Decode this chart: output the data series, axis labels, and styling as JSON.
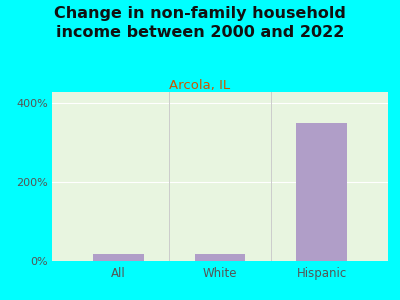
{
  "title": "Change in non-family household\nincome between 2000 and 2022",
  "subtitle": "Arcola, IL",
  "categories": [
    "All",
    "White",
    "Hispanic"
  ],
  "values": [
    18,
    18,
    350
  ],
  "bar_color": "#b09ec8",
  "background_color": "#00ffff",
  "plot_bg_top": "#e8f5e0",
  "plot_bg_bottom": "#f8fff8",
  "title_fontsize": 11.5,
  "subtitle_fontsize": 9.5,
  "subtitle_color": "#cc5500",
  "title_color": "#111111",
  "tick_label_color": "#555555",
  "ytick_labels": [
    "0%",
    "200%",
    "400%"
  ],
  "ytick_values": [
    0,
    200,
    400
  ],
  "ylim": [
    0,
    430
  ]
}
